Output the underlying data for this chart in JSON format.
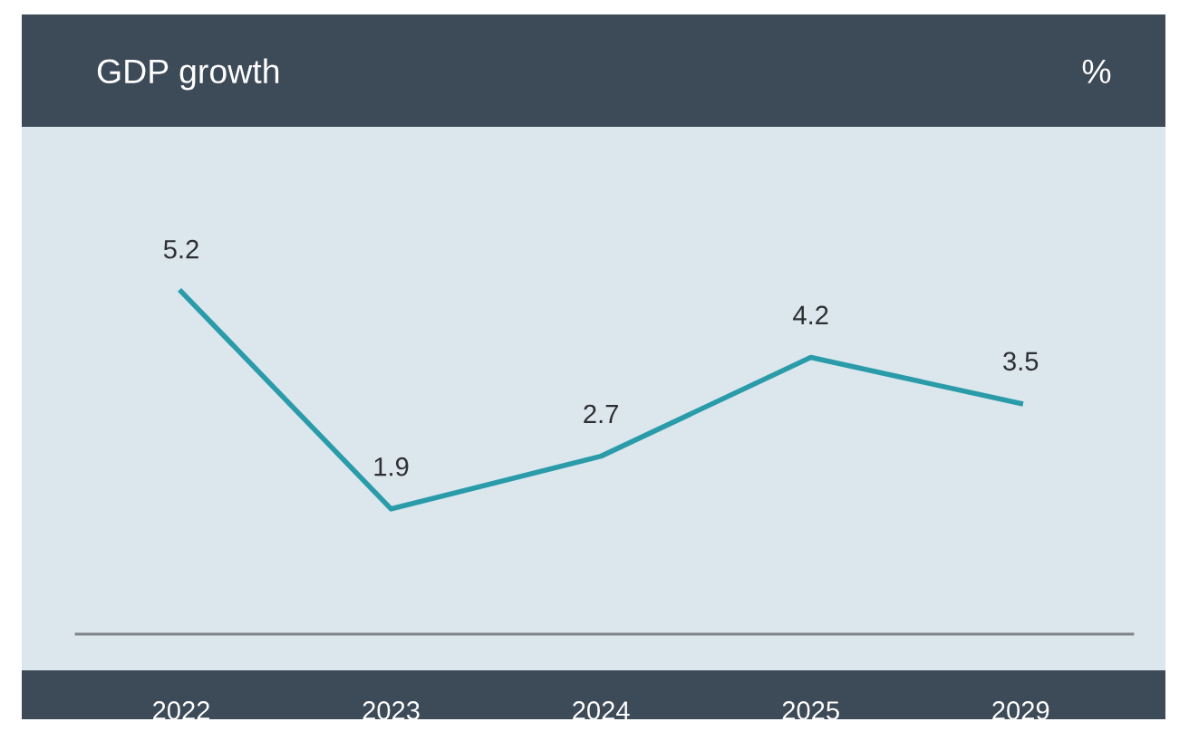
{
  "chart_data": {
    "type": "line",
    "title": "GDP growth",
    "ylabel": "%",
    "categories": [
      "2022",
      "2023",
      "2024",
      "2025",
      "2029"
    ],
    "series": [
      {
        "color": "#2a9ba8",
        "values": [
          5.2,
          1.9,
          2.7,
          4.2,
          3.5
        ]
      }
    ],
    "data_labels": true,
    "ylim": [
      -0.55,
      7.7
    ],
    "grid": false,
    "legend": false,
    "marker": "none",
    "line_style": "solid",
    "ref_lines": [
      {
        "axis": "y",
        "value": 0,
        "label": null,
        "color": "#7f8589"
      }
    ]
  }
}
